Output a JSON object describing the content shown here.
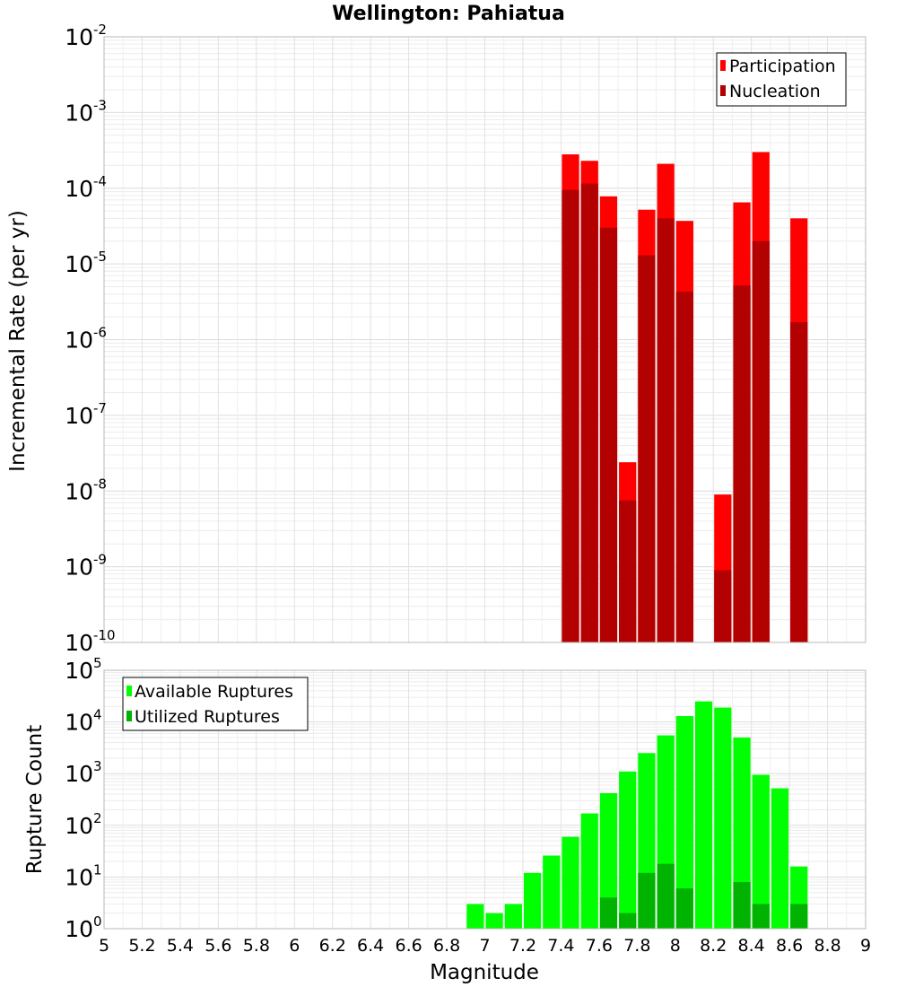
{
  "chart_data": [
    {
      "type": "bar",
      "title": "Wellington: Pahiatua",
      "xlabel": "",
      "ylabel": "Incremental Rate (per yr)",
      "yscale": "log",
      "ylim": [
        1e-10,
        0.01
      ],
      "xlim": [
        5,
        9
      ],
      "grid": true,
      "legend_position": "top-right",
      "x": [
        7.45,
        7.55,
        7.65,
        7.75,
        7.85,
        7.95,
        8.05,
        8.25,
        8.35,
        8.45,
        8.65
      ],
      "series": [
        {
          "name": "Participation",
          "color": "#ff0000",
          "values": [
            0.00028,
            0.00023,
            7.8e-05,
            2.4e-08,
            5.2e-05,
            0.00021,
            3.7e-05,
            9e-09,
            6.5e-05,
            0.0003,
            4e-05
          ]
        },
        {
          "name": "Nucleation",
          "color": "#b30000",
          "values": [
            9.5e-05,
            0.000115,
            3e-05,
            7.5e-09,
            1.3e-05,
            4e-05,
            4.3e-06,
            9e-10,
            5.2e-06,
            2e-05,
            1.7e-06
          ]
        }
      ]
    },
    {
      "type": "bar",
      "title": "",
      "xlabel": "Magnitude",
      "ylabel": "Rupture Count",
      "yscale": "log",
      "ylim": [
        1,
        100000.0
      ],
      "xlim": [
        5,
        9
      ],
      "grid": true,
      "legend_position": "top-left",
      "x_ticks": [
        "5",
        "5.2",
        "5.4",
        "5.6",
        "5.8",
        "6",
        "6.2",
        "6.4",
        "6.6",
        "6.8",
        "7",
        "7.2",
        "7.4",
        "7.6",
        "7.8",
        "8",
        "8.2",
        "8.4",
        "8.6",
        "8.8",
        "9"
      ],
      "x": [
        6.95,
        7.05,
        7.15,
        7.25,
        7.35,
        7.45,
        7.55,
        7.65,
        7.75,
        7.85,
        7.95,
        8.05,
        8.15,
        8.25,
        8.35,
        8.45,
        8.55,
        8.65
      ],
      "series": [
        {
          "name": "Available Ruptures",
          "color": "#00ff00",
          "values": [
            3,
            2,
            3,
            12,
            26,
            60,
            170,
            420,
            1100,
            2500,
            5500,
            13000,
            25000,
            19000,
            5000,
            950,
            520,
            16
          ]
        },
        {
          "name": "Utilized Ruptures",
          "color": "#00b300",
          "values": [
            null,
            null,
            null,
            null,
            null,
            1,
            1,
            4,
            2,
            12,
            18,
            6,
            null,
            1,
            8,
            3,
            null,
            3
          ]
        }
      ]
    }
  ]
}
